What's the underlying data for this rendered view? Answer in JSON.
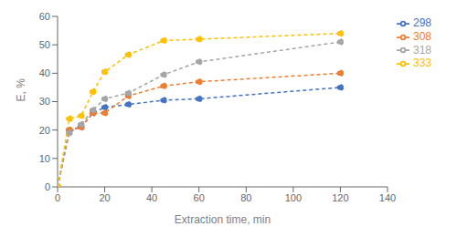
{
  "chart_data": {
    "type": "line",
    "xlabel": "Extraction time, min",
    "ylabel": "E, %",
    "x": [
      0,
      5,
      10,
      15,
      20,
      30,
      45,
      60,
      120
    ],
    "series": [
      {
        "name": "298",
        "color": "#4472C4",
        "values": [
          0,
          20,
          21,
          26,
          28,
          29,
          30.5,
          31,
          35
        ]
      },
      {
        "name": "308",
        "color": "#ED7D31",
        "values": [
          0,
          20,
          21,
          26,
          26,
          32,
          35.5,
          37,
          40
        ]
      },
      {
        "name": "318",
        "color": "#A5A5A5",
        "values": [
          0,
          19,
          22,
          27,
          31,
          33,
          39.5,
          44,
          51
        ]
      },
      {
        "name": "333",
        "color": "#FFC000",
        "values": [
          0,
          24,
          25,
          33.5,
          40.5,
          46.5,
          51.5,
          52,
          54
        ]
      }
    ],
    "xlim": [
      0,
      140
    ],
    "ylim": [
      0,
      60
    ],
    "xticks": [
      0,
      20,
      40,
      60,
      80,
      100,
      120,
      140
    ],
    "yticks": [
      0,
      10,
      20,
      30,
      40,
      50,
      60
    ],
    "grid": false,
    "legend": "right",
    "marker": "circle",
    "line_style": "dashed"
  }
}
